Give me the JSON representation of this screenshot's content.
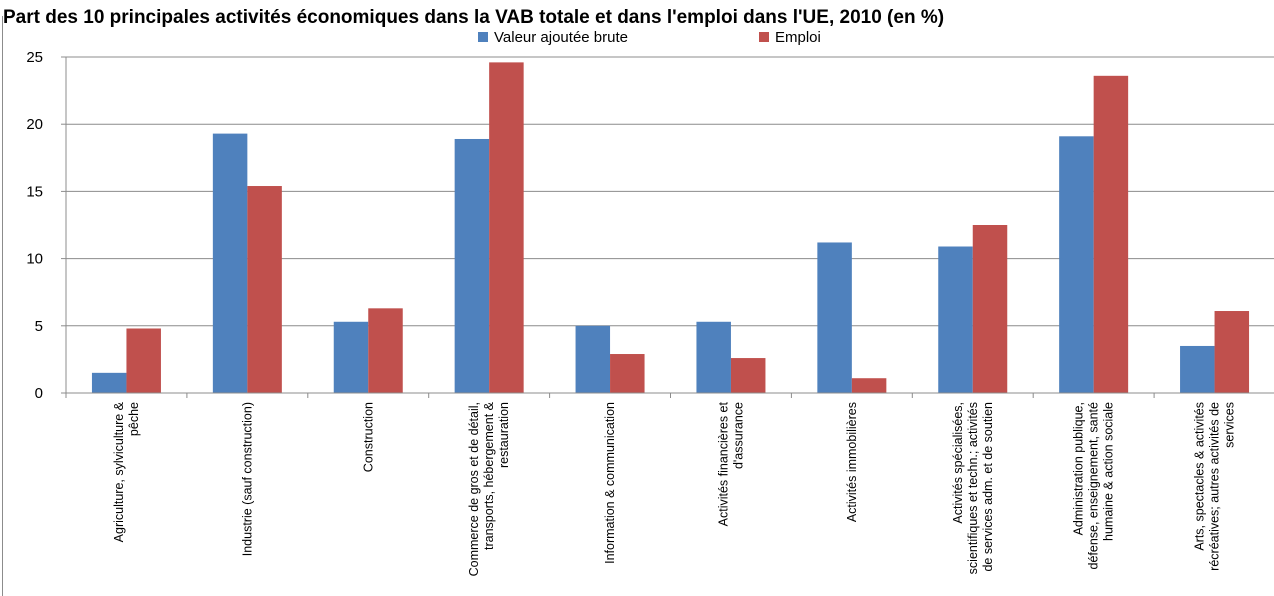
{
  "chart_data": {
    "type": "bar",
    "title": "Part des 10 principales activités économiques dans la VAB totale et dans l'emploi dans l'UE, 2010 (en %)",
    "ylim": [
      0,
      25
    ],
    "yticks": [
      "0",
      "5",
      "10",
      "15",
      "20",
      "25"
    ],
    "grid": true,
    "legend_position": "top-center",
    "categories": [
      [
        "Agriculture, sylviculture &",
        "pêche"
      ],
      [
        "Industrie (sauf construction)"
      ],
      [
        "Construction"
      ],
      [
        "Commerce de gros et de détail,",
        "transports, hébergement &",
        "restauration"
      ],
      [
        "Information & communication"
      ],
      [
        "Activités financières et",
        "d'assurance"
      ],
      [
        "Activités immobilières"
      ],
      [
        "Activités spécialisées,",
        "scientifiques et techn.; activités",
        "de services adm. et de soutien"
      ],
      [
        "Administration publique,",
        "défense, enseignement, santé",
        "humaine & action sociale"
      ],
      [
        "Arts, spectacles & activités",
        "récréatives; autres activités de",
        "services"
      ]
    ],
    "series": [
      {
        "name": "Valeur ajoutée brute",
        "color": "#4f81bd",
        "values": [
          1.5,
          19.3,
          5.3,
          18.9,
          5.0,
          5.3,
          11.2,
          10.9,
          19.1,
          3.5
        ]
      },
      {
        "name": "Emploi",
        "color": "#c0504d",
        "values": [
          4.8,
          15.4,
          6.3,
          24.6,
          2.9,
          2.6,
          1.1,
          12.5,
          23.6,
          6.1
        ]
      }
    ]
  }
}
